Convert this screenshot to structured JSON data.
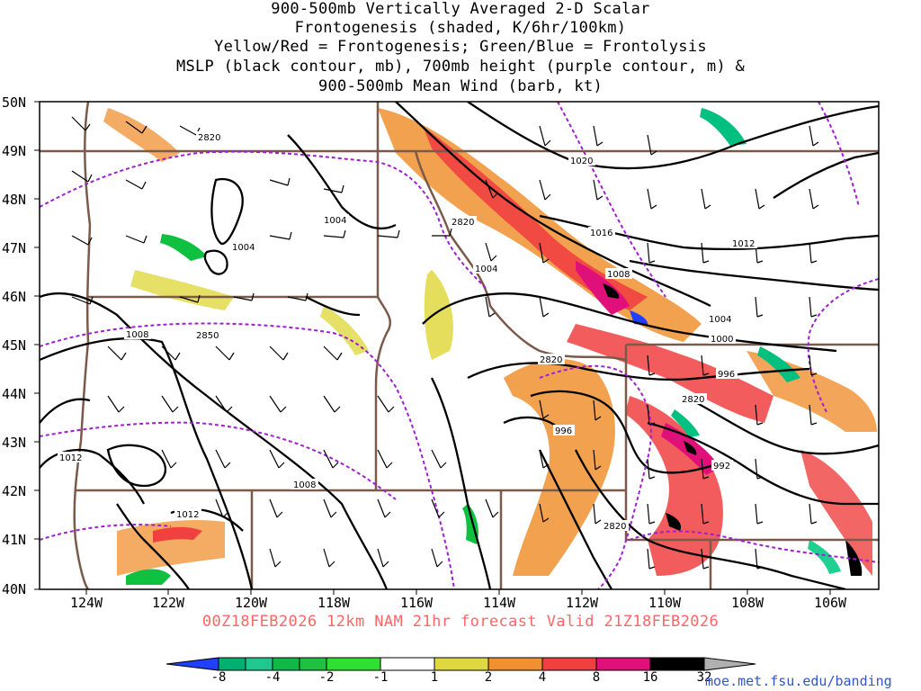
{
  "title": {
    "line1": "900-500mb Vertically Averaged 2-D Scalar",
    "line2": "Frontogenesis (shaded, K/6hr/100km)",
    "line3": "Yellow/Red = Frontogenesis;  Green/Blue = Frontolysis",
    "line4": "MSLP (black contour, mb), 700mb height (purple contour, m) &",
    "line5": "900-500mb Mean Wind (barb, kt)"
  },
  "lat_labels": [
    "50N",
    "49N",
    "48N",
    "47N",
    "46N",
    "45N",
    "44N",
    "43N",
    "42N",
    "41N",
    "40N"
  ],
  "lon_labels": [
    "124W",
    "122W",
    "120W",
    "118W",
    "116W",
    "114W",
    "112W",
    "110W",
    "108W",
    "106W"
  ],
  "mslp_labels": [
    "1004",
    "1004",
    "1004",
    "1008",
    "1012",
    "1012",
    "1016",
    "1020",
    "1012",
    "1008",
    "1004",
    "1000",
    "996",
    "996",
    "992",
    "1008"
  ],
  "height_labels": [
    "2820",
    "2820",
    "2850",
    "2820",
    "2820",
    "2820"
  ],
  "footer": "00Z18FEB2026 12km NAM 21hr forecast Valid 21Z18FEB2026",
  "colorbar": {
    "labels": [
      "-8",
      "-4",
      "-2",
      "-1",
      "1",
      "2",
      "4",
      "8",
      "16",
      "32"
    ],
    "colors": [
      "#2040ff",
      "#00c080",
      "#20d090",
      "#10c040",
      "#30e030",
      "#ffffff",
      "#e0d840",
      "#f09030",
      "#f04040",
      "#e0107a",
      "#000000",
      "#b0b0b0"
    ]
  },
  "credit": "moe.met.fsu.edu/banding",
  "colors": {
    "state_border": "#7a5a4a",
    "mslp": "#000000",
    "height": "#a020d0",
    "footer": "#ff6666",
    "credit": "#3355cc"
  }
}
